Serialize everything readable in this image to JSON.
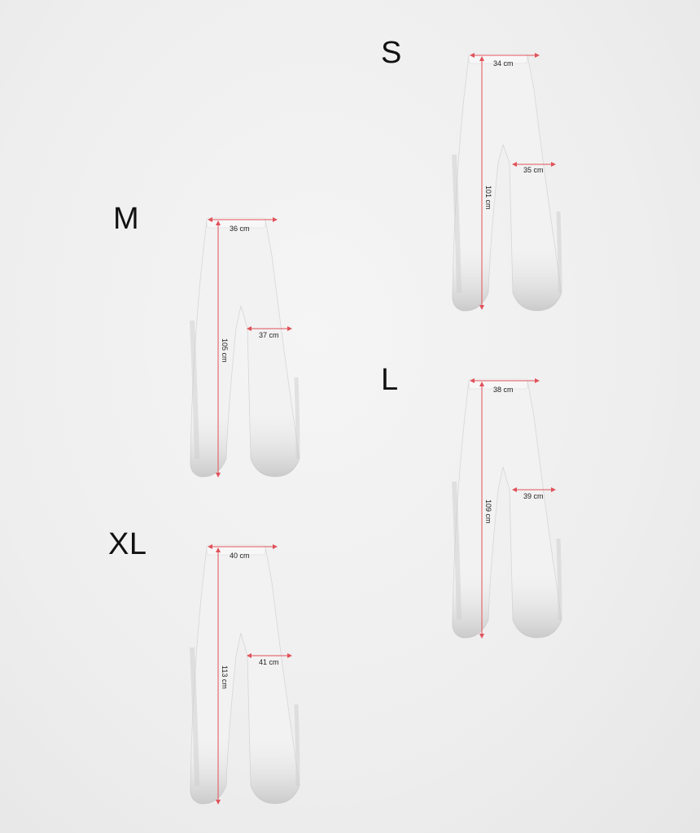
{
  "sizes": [
    {
      "id": "S",
      "label": "S",
      "waist": "34 cm",
      "leg": "35 cm",
      "length": "101 cm"
    },
    {
      "id": "M",
      "label": "M",
      "waist": "36 cm",
      "leg": "37 cm",
      "length": "105 cm"
    },
    {
      "id": "L",
      "label": "L",
      "waist": "38 cm",
      "leg": "39 cm",
      "length": "109 cm"
    },
    {
      "id": "XL",
      "label": "XL",
      "waist": "40 cm",
      "leg": "41 cm",
      "length": "113 cm"
    }
  ],
  "colors": {
    "measure_line": "#e0525a",
    "garment": "#f4f4f4",
    "shade": "#c9c9c9"
  }
}
